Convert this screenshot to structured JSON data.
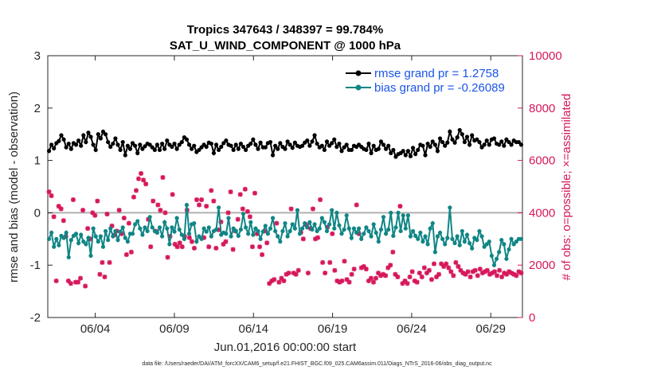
{
  "chart_data": {
    "type": "line",
    "title_line1": "Tropics 347643 / 348397 = 99.784%",
    "title_line2": "SAT_U_WIND_COMPONENT @ 1000 hPa",
    "xlabel": "Jun.01,2016 00:00:00 start",
    "ylabel_left": "rmse and bias (model - observation)",
    "ylabel_right": "# of obs: o=possible; ×=assimilated",
    "footer": "data file: /Users/raeder/DAI/ATM_forcXX/CAM6_setup/f.e21.FHIST_BGC.f09_025.CAM6assim.011/Diags_NTrS_2016-06/obs_diag_output.nc",
    "x_range_days": [
      0.5,
      30.5
    ],
    "ylim_left": [
      -2,
      3
    ],
    "ylim_right": [
      0,
      10000
    ],
    "x_tick_days": [
      3.5,
      8.5,
      13.5,
      18.5,
      23.5,
      28.5
    ],
    "x_tick_labels": [
      "06/04",
      "06/09",
      "06/14",
      "06/19",
      "06/24",
      "06/29"
    ],
    "y_ticks_left": [
      "-2",
      "-1",
      "0",
      "1",
      "2",
      "3"
    ],
    "y_ticks_right": [
      "0",
      "2000",
      "4000",
      "6000",
      "8000",
      "10000"
    ],
    "colors": {
      "rmse": "#000000",
      "bias": "#108585",
      "obs": "#d6175b",
      "zero": "#b0b0b0",
      "legend_text": "#1a56e8"
    },
    "series": [
      {
        "name": "rmse grand pr = 1.2758",
        "axis": "left",
        "style": "line-dot",
        "values": [
          1.18,
          1.3,
          1.23,
          1.33,
          1.37,
          1.48,
          1.4,
          1.25,
          1.32,
          1.22,
          1.33,
          1.3,
          1.38,
          1.28,
          1.48,
          1.35,
          1.53,
          1.45,
          1.3,
          1.2,
          1.5,
          1.42,
          1.55,
          1.5,
          1.35,
          1.26,
          1.32,
          1.42,
          1.3,
          1.2,
          1.35,
          1.1,
          1.28,
          1.22,
          1.33,
          1.28,
          1.14,
          1.3,
          1.22,
          1.27,
          1.32,
          1.3,
          1.25,
          1.2,
          1.3,
          1.2,
          1.32,
          1.22,
          1.38,
          1.3,
          1.26,
          1.32,
          1.22,
          1.3,
          1.35,
          1.44,
          1.4,
          1.3,
          1.22,
          1.28,
          1.16,
          1.2,
          1.25,
          1.3,
          1.26,
          1.34,
          1.32,
          1.14,
          1.3,
          1.2,
          1.26,
          1.33,
          1.38,
          1.3,
          1.28,
          1.2,
          1.3,
          1.22,
          1.32,
          1.26,
          1.2,
          1.28,
          1.32,
          1.4,
          1.3,
          1.22,
          1.34,
          1.25,
          1.25,
          1.33,
          1.35,
          1.1,
          1.28,
          1.22,
          1.33,
          1.26,
          1.22,
          1.36,
          1.3,
          1.24,
          1.34,
          1.28,
          1.26,
          1.28,
          1.34,
          1.38,
          1.28,
          1.36,
          1.48,
          1.32,
          1.25,
          1.28,
          1.2,
          1.36,
          1.28,
          1.33,
          1.4,
          1.26,
          1.32,
          1.18,
          1.25,
          1.3,
          1.2,
          1.2,
          1.28,
          1.26,
          1.3,
          1.26,
          1.22,
          1.2,
          1.32,
          1.14,
          1.28,
          1.2,
          1.22,
          1.36,
          1.3,
          1.22,
          1.28,
          1.14,
          1.2,
          1.07,
          1.12,
          1.14,
          1.18,
          1.1,
          1.18,
          1.08,
          1.24,
          1.12,
          1.2,
          1.3,
          1.28,
          1.1,
          1.32,
          1.26,
          1.36,
          1.3,
          1.18,
          1.42,
          1.35,
          1.28,
          1.34,
          1.55,
          1.4,
          1.34,
          1.44,
          1.58,
          1.5,
          1.35,
          1.45,
          1.3,
          1.48,
          1.38,
          1.4,
          1.35,
          1.25,
          1.3,
          1.38,
          1.3,
          1.4,
          1.42,
          1.32,
          1.3,
          1.36,
          1.28,
          1.4,
          1.35,
          1.3,
          1.38,
          1.35,
          1.35,
          1.3
        ]
      },
      {
        "name": "bias grand pr = -0.26089",
        "axis": "left",
        "style": "line-dot",
        "values": [
          -0.5,
          -0.38,
          -0.65,
          -0.5,
          -0.62,
          -0.44,
          -0.48,
          -0.38,
          -0.85,
          -0.52,
          -0.44,
          -0.4,
          -0.58,
          -0.42,
          -0.55,
          -0.6,
          -0.48,
          -0.82,
          -0.3,
          -0.45,
          -0.55,
          -0.45,
          -0.65,
          -0.35,
          -0.52,
          -0.3,
          -0.45,
          -0.35,
          -0.52,
          -0.36,
          -0.28,
          -0.48,
          -0.55,
          -0.4,
          -0.4,
          -0.22,
          -0.16,
          -0.3,
          -0.42,
          -0.28,
          -0.35,
          -0.08,
          -0.28,
          -0.35,
          -0.38,
          -0.28,
          -0.45,
          -0.18,
          -0.3,
          -0.6,
          -0.28,
          -0.36,
          -0.1,
          -0.32,
          -0.42,
          -0.5,
          0.15,
          -0.4,
          -0.22,
          -0.2,
          -0.55,
          -0.45,
          -0.5,
          -0.3,
          -0.36,
          -0.28,
          -0.45,
          -0.35,
          -0.32,
          0.1,
          -0.42,
          -0.38,
          -0.4,
          -0.1,
          -0.45,
          -0.3,
          -0.35,
          -0.44,
          -0.32,
          -0.02,
          -0.28,
          -0.4,
          -0.18,
          -0.42,
          -0.3,
          -0.35,
          -0.5,
          -0.36,
          -0.25,
          -0.4,
          -0.3,
          -0.1,
          -0.35,
          -0.45,
          -0.55,
          -0.35,
          -0.2,
          -0.45,
          -0.35,
          -0.22,
          -0.3,
          0.05,
          -0.4,
          -0.3,
          -0.2,
          -0.28,
          -0.18,
          -0.32,
          -0.22,
          -0.35,
          -0.3,
          -0.1,
          -0.18,
          -0.35,
          -0.22,
          0.05,
          -0.3,
          0.0,
          -0.24,
          -0.4,
          -0.32,
          -0.05,
          -0.3,
          -0.48,
          -0.3,
          -0.38,
          -0.3,
          -0.5,
          -0.4,
          -0.28,
          -0.35,
          -0.45,
          -0.22,
          -0.38,
          -0.55,
          -0.32,
          -0.08,
          -0.4,
          -0.32,
          0.0,
          -0.44,
          -0.28,
          0.0,
          -0.35,
          -0.05,
          -0.3,
          -0.05,
          -0.45,
          -0.35,
          -0.44,
          -0.5,
          -0.38,
          -0.55,
          -0.45,
          -0.6,
          -0.3,
          -0.2,
          -0.75,
          -0.45,
          -0.38,
          -0.5,
          -0.6,
          -0.48,
          0.1,
          -0.5,
          -0.58,
          -0.45,
          -0.62,
          -0.35,
          -0.55,
          -0.42,
          -0.58,
          -0.68,
          -0.48,
          -0.52,
          -0.35,
          -0.45,
          -0.65,
          -0.6,
          -0.55,
          -0.82,
          -1.0,
          -0.88,
          -0.75,
          -0.52,
          -0.6,
          -0.88,
          -0.7,
          -0.5,
          -0.6,
          -0.55,
          -0.5,
          -0.5
        ]
      },
      {
        "name": "obs assimilated",
        "axis": "right",
        "style": "marker",
        "values": [
          4800,
          4650,
          3850,
          1400,
          4250,
          4150,
          3700,
          3100,
          1400,
          1300,
          4500,
          1350,
          1350,
          1500,
          4100,
          1200,
          3400,
          3000,
          4000,
          3900,
          4450,
          1650,
          2100,
          1550,
          3950,
          2100,
          3500,
          3150,
          3300,
          4100,
          3200,
          3800,
          2400,
          3600,
          2500,
          4600,
          4850,
          5300,
          5500,
          5250,
          5100,
          3750,
          2700,
          4450,
          3300,
          4300,
          4100,
          5350,
          4000,
          2300,
          3100,
          4700,
          2800,
          2700,
          2850,
          2700,
          3100,
          4100,
          3050,
          2900,
          2650,
          4500,
          4300,
          4500,
          3050,
          4250,
          2700,
          4850,
          4450,
          2650,
          3350,
          3650,
          2800,
          2900,
          4000,
          4800,
          2600,
          3300,
          3750,
          4700,
          4150,
          4900,
          4050,
          3850,
          2700,
          4750,
          3200,
          2700,
          2400,
          3300,
          2850,
          1300,
          1400,
          1450,
          3600,
          1350,
          1500,
          1400,
          1650,
          1700,
          4150,
          1700,
          1650,
          1800,
          3250,
          3000,
          3550,
          1700,
          3400,
          4150,
          3000,
          3050,
          4500,
          2100,
          1700,
          3450,
          2100,
          3200,
          1800,
          1400,
          1350,
          1400,
          2150,
          1450,
          1350,
          1650,
          1850,
          4300,
          3200,
          1900,
          1950,
          1850,
          1400,
          1500,
          1350,
          1500,
          1700,
          1600,
          1650,
          1600,
          1900,
          2000,
          2500,
          1650,
          1550,
          4250,
          1300,
          1400,
          1300,
          1550,
          1750,
          1400,
          1350,
          1700,
          1550,
          1900,
          1700,
          1800,
          1450,
          2050,
          1550,
          1650,
          2050,
          1950,
          2050,
          1900,
          1750,
          1600,
          2100,
          1950,
          1800,
          1700,
          1650,
          1750,
          1550,
          1750,
          1800,
          1600,
          1850,
          1700,
          1750,
          1800,
          1650,
          1700,
          1750,
          1600,
          1800,
          1550,
          1700,
          1650,
          1750,
          1700,
          1650,
          1600,
          1750,
          1700
        ]
      }
    ]
  }
}
